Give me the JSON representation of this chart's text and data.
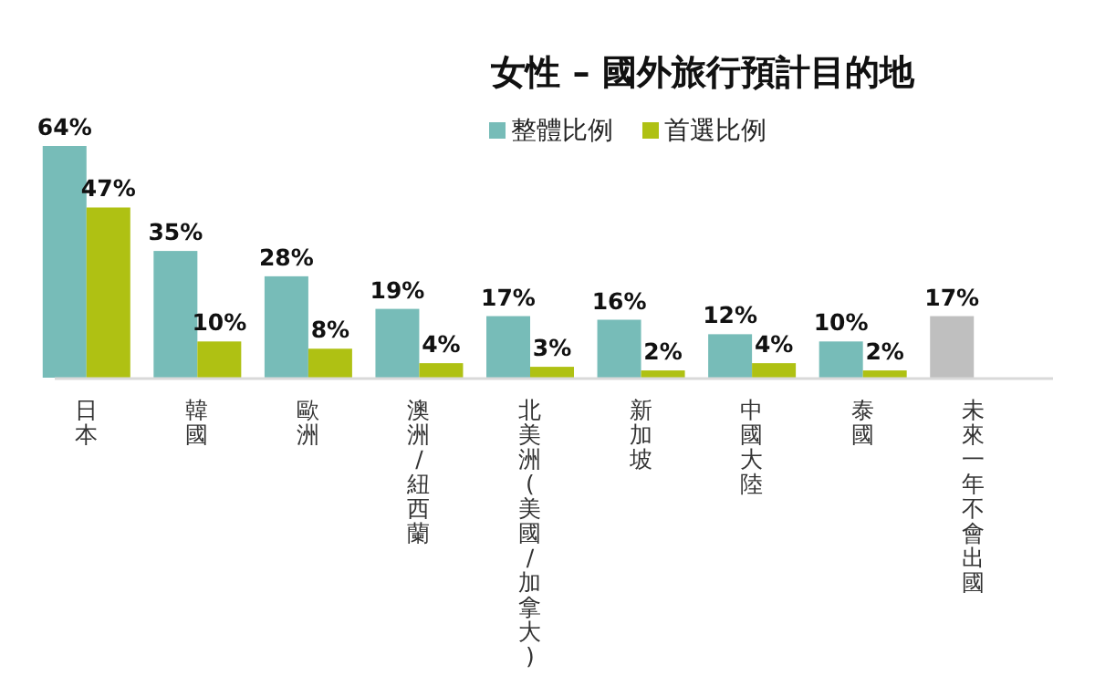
{
  "chart_data": {
    "type": "bar",
    "title": "女性 – 國外旅行預計目的地",
    "categories": [
      "日本",
      "韓國",
      "歐洲",
      "澳洲/紐西蘭",
      "北美洲(美國/加拿大)",
      "新加坡",
      "中國大陸",
      "泰國",
      "未來一年不會出國"
    ],
    "series": [
      {
        "name": "整體比例",
        "color": "#77bcb8",
        "colors": [
          "#77bcb8",
          "#77bcb8",
          "#77bcb8",
          "#77bcb8",
          "#77bcb8",
          "#77bcb8",
          "#77bcb8",
          "#77bcb8",
          "#bfbfbf"
        ],
        "values": [
          64,
          35,
          28,
          19,
          17,
          16,
          12,
          10,
          17
        ],
        "value_labels": [
          "64%",
          "35%",
          "28%",
          "19%",
          "17%",
          "16%",
          "12%",
          "10%",
          "17%"
        ]
      },
      {
        "name": "首選比例",
        "color": "#afc113",
        "values": [
          47,
          10,
          8,
          4,
          3,
          2,
          4,
          2,
          null
        ],
        "value_labels": [
          "47%",
          "10%",
          "8%",
          "4%",
          "3%",
          "2%",
          "4%",
          "2%",
          null
        ]
      }
    ],
    "legend": "top"
  }
}
